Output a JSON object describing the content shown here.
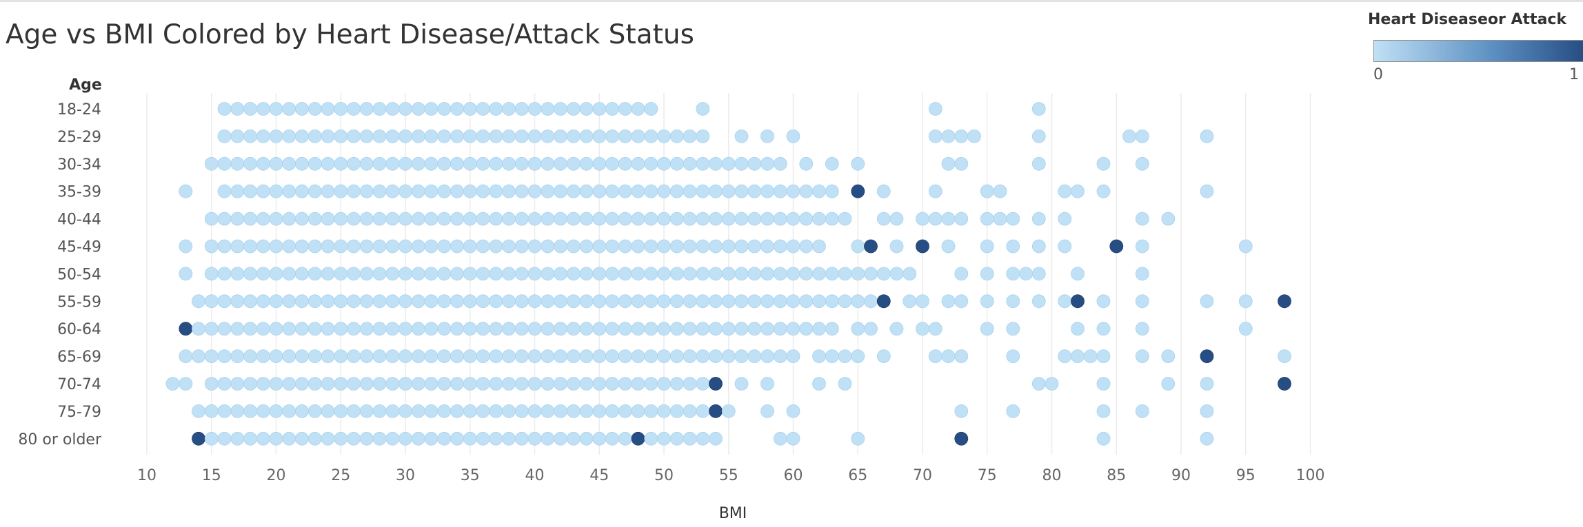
{
  "chart_data": {
    "type": "scatter",
    "title": "Age vs BMI Colored by Heart Disease/Attack Status",
    "xlabel": "BMI",
    "ylabel": "Age",
    "xlim": [
      7,
      107
    ],
    "xticks": [
      10,
      15,
      20,
      25,
      30,
      35,
      40,
      45,
      50,
      55,
      60,
      65,
      70,
      75,
      80,
      85,
      90,
      95,
      100
    ],
    "categories": [
      "18-24",
      "25-29",
      "30-34",
      "35-39",
      "40-44",
      "45-49",
      "50-54",
      "55-59",
      "60-64",
      "65-69",
      "70-74",
      "75-79",
      "80 or older"
    ],
    "grid": "vertical",
    "color_legend": {
      "title": "Heart Diseaseor Attack",
      "min_label": "0",
      "max_label": "1",
      "min_color": "#c0e0f5",
      "max_color": "#274e84",
      "placement": "top-right"
    },
    "points": {
      "18-24": {
        "range": [
          16,
          49
        ],
        "extra": [
          53,
          71,
          79
        ],
        "disease": []
      },
      "25-29": {
        "range": [
          16,
          53
        ],
        "extra": [
          56,
          58,
          60,
          71,
          72,
          73,
          74,
          79,
          86,
          87,
          92
        ],
        "disease": []
      },
      "30-34": {
        "range": [
          15,
          59
        ],
        "extra": [
          61,
          63,
          65,
          72,
          73,
          79,
          84,
          87
        ],
        "disease": []
      },
      "35-39": {
        "range": [
          16,
          63
        ],
        "extra": [
          13,
          65,
          67,
          71,
          75,
          76,
          81,
          82,
          84,
          92
        ],
        "disease": [
          65
        ]
      },
      "40-44": {
        "range": [
          15,
          62
        ],
        "extra": [
          63,
          64,
          67,
          68,
          70,
          71,
          72,
          73,
          75,
          76,
          77,
          79,
          81,
          87,
          89
        ],
        "disease": []
      },
      "45-49": {
        "range": [
          15,
          62
        ],
        "extra": [
          13,
          65,
          66,
          68,
          70,
          72,
          75,
          77,
          79,
          81,
          85,
          87,
          95
        ],
        "disease": [
          66,
          70,
          85
        ]
      },
      "50-54": {
        "range": [
          15,
          69
        ],
        "extra": [
          13,
          73,
          75,
          77,
          78,
          79,
          82,
          87
        ],
        "disease": []
      },
      "55-59": {
        "range": [
          14,
          67
        ],
        "extra": [
          69,
          70,
          72,
          73,
          75,
          77,
          79,
          81,
          82,
          84,
          87,
          92,
          95,
          98
        ],
        "disease": [
          67,
          82,
          98
        ]
      },
      "60-64": {
        "range": [
          13,
          63
        ],
        "extra": [
          65,
          66,
          68,
          70,
          71,
          75,
          77,
          82,
          84,
          87,
          95
        ],
        "disease": [
          13
        ]
      },
      "65-69": {
        "range": [
          13,
          60
        ],
        "extra": [
          62,
          63,
          64,
          65,
          67,
          71,
          72,
          73,
          77,
          81,
          82,
          83,
          84,
          87,
          89,
          92,
          98
        ],
        "disease": [
          92
        ]
      },
      "70-74": {
        "range": [
          15,
          54
        ],
        "extra": [
          12,
          13,
          56,
          58,
          62,
          64,
          79,
          80,
          84,
          89,
          92,
          98
        ],
        "disease": [
          54,
          98
        ]
      },
      "75-79": {
        "range": [
          14,
          54
        ],
        "extra": [
          55,
          58,
          60,
          73,
          77,
          84,
          87,
          92
        ],
        "disease": [
          54
        ]
      },
      "80 or older": {
        "range": [
          14,
          54
        ],
        "extra": [
          59,
          60,
          65,
          73,
          84,
          92
        ],
        "disease": [
          14,
          48,
          73
        ]
      }
    }
  }
}
